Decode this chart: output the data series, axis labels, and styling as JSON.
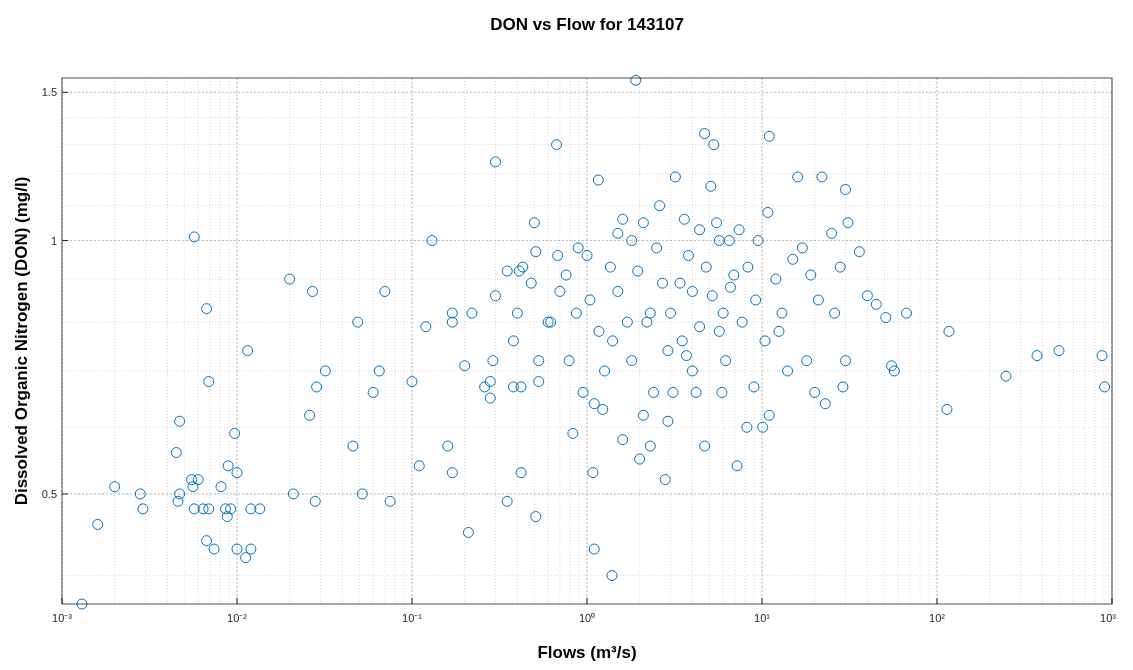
{
  "chart_data": {
    "type": "scatter",
    "title": "DON vs Flow for 143107",
    "xlabel": "Flows (m³/s)",
    "ylabel": "Dissolved Organic Nitrogen (DON) (mg/l)",
    "log": "xy",
    "grid": true,
    "marker": "circle",
    "xlim": [
      0.001,
      1000
    ],
    "xticks": [
      {
        "value": 0.001,
        "label": "10⁻³"
      },
      {
        "value": 0.01,
        "label": "10⁻²"
      },
      {
        "value": 0.1,
        "label": "10⁻¹"
      },
      {
        "value": 1,
        "label": "10⁰"
      },
      {
        "value": 10,
        "label": "10¹"
      },
      {
        "value": 100,
        "label": "10²"
      },
      {
        "value": 1000,
        "label": "10³"
      }
    ],
    "ylim": [
      0.37,
      1.56
    ],
    "yticks": [
      0.5,
      1,
      1.5
    ],
    "series": [
      {
        "color": "#0072bd",
        "x": [
          0.0013,
          0.0016,
          0.002,
          0.0028,
          0.0029,
          0.0045,
          0.0047,
          0.0046,
          0.0047,
          0.0055,
          0.0056,
          0.0057,
          0.0057,
          0.006,
          0.0064,
          0.0067,
          0.0067,
          0.0069,
          0.0069,
          0.0074,
          0.0081,
          0.0086,
          0.0088,
          0.0089,
          0.0092,
          0.0097,
          0.01,
          0.01,
          0.0112,
          0.0115,
          0.012,
          0.012,
          0.0135,
          0.02,
          0.021,
          0.026,
          0.027,
          0.028,
          0.0285,
          0.032,
          0.046,
          0.049,
          0.052,
          0.06,
          0.065,
          0.07,
          0.075,
          0.1,
          0.11,
          0.12,
          0.13,
          0.16,
          0.17,
          0.17,
          0.17,
          0.2,
          0.21,
          0.22,
          0.26,
          0.28,
          0.28,
          0.29,
          0.3,
          0.3,
          0.35,
          0.35,
          0.38,
          0.38,
          0.4,
          0.41,
          0.42,
          0.42,
          0.43,
          0.48,
          0.5,
          0.51,
          0.51,
          0.53,
          0.53,
          0.6,
          0.62,
          0.67,
          0.68,
          0.7,
          0.76,
          0.79,
          0.83,
          0.87,
          0.89,
          0.95,
          1.0,
          1.04,
          1.1,
          1.1,
          1.08,
          1.16,
          1.17,
          1.23,
          1.26,
          1.36,
          1.39,
          1.4,
          1.5,
          1.5,
          1.6,
          1.6,
          1.7,
          1.8,
          1.8,
          1.9,
          1.95,
          2.0,
          2.1,
          2.1,
          2.2,
          2.3,
          2.3,
          2.4,
          2.5,
          2.6,
          2.7,
          2.8,
          2.9,
          2.9,
          3.0,
          3.1,
          3.2,
          3.4,
          3.5,
          3.6,
          3.7,
          3.8,
          4.0,
          4.0,
          4.2,
          4.4,
          4.4,
          4.7,
          4.7,
          4.8,
          5.1,
          5.2,
          5.3,
          5.5,
          5.7,
          5.7,
          5.9,
          6.0,
          6.2,
          6.5,
          6.6,
          6.9,
          7.2,
          7.4,
          7.7,
          8.2,
          8.3,
          9.0,
          9.2,
          9.5,
          10.1,
          10.4,
          10.8,
          11,
          11,
          12,
          12.5,
          13,
          14,
          15,
          16,
          17,
          18,
          19,
          20,
          21,
          22,
          23,
          25,
          26,
          28,
          29,
          30,
          30,
          31,
          36,
          40,
          45,
          51,
          55,
          57,
          67,
          114,
          117,
          248,
          373,
          498,
          877,
          907
        ],
        "values": [
          0.37,
          0.46,
          0.51,
          0.5,
          0.48,
          0.56,
          0.61,
          0.49,
          0.5,
          0.52,
          0.51,
          1.01,
          0.48,
          0.52,
          0.48,
          0.83,
          0.44,
          0.68,
          0.48,
          0.43,
          0.51,
          0.48,
          0.47,
          0.54,
          0.48,
          0.59,
          0.53,
          0.43,
          0.42,
          0.74,
          0.43,
          0.48,
          0.48,
          0.9,
          0.5,
          0.62,
          0.87,
          0.49,
          0.67,
          0.7,
          0.57,
          0.8,
          0.5,
          0.66,
          0.7,
          0.87,
          0.49,
          0.68,
          0.54,
          0.79,
          1.0,
          0.57,
          0.8,
          0.82,
          0.53,
          0.71,
          0.45,
          0.82,
          0.67,
          0.65,
          0.68,
          0.72,
          1.24,
          0.86,
          0.49,
          0.92,
          0.76,
          0.67,
          0.82,
          0.92,
          0.67,
          0.53,
          0.93,
          0.89,
          1.05,
          0.97,
          0.47,
          0.72,
          0.68,
          0.8,
          0.8,
          1.3,
          0.96,
          0.87,
          0.91,
          0.72,
          0.59,
          0.82,
          0.98,
          0.66,
          0.96,
          0.85,
          0.64,
          0.43,
          0.53,
          1.18,
          0.78,
          0.63,
          0.7,
          0.93,
          0.4,
          0.76,
          0.87,
          1.02,
          0.58,
          1.06,
          0.8,
          1.0,
          0.72,
          1.55,
          0.92,
          0.55,
          0.62,
          1.05,
          0.8,
          0.57,
          0.82,
          0.66,
          0.98,
          1.1,
          0.89,
          0.52,
          0.61,
          0.74,
          0.82,
          0.66,
          1.19,
          0.89,
          0.76,
          1.06,
          0.73,
          0.96,
          0.87,
          0.7,
          0.66,
          1.03,
          0.79,
          1.34,
          0.57,
          0.93,
          1.16,
          0.86,
          1.3,
          1.05,
          1.0,
          0.78,
          0.66,
          0.82,
          0.72,
          1.0,
          0.88,
          0.91,
          0.54,
          1.03,
          0.8,
          0.6,
          0.93,
          0.67,
          0.85,
          1.0,
          0.6,
          0.76,
          1.08,
          1.33,
          0.62,
          0.9,
          0.78,
          0.82,
          0.7,
          0.95,
          1.19,
          0.98,
          0.72,
          0.91,
          0.66,
          0.85,
          1.19,
          0.64,
          1.02,
          0.82,
          0.93,
          0.67,
          0.72,
          1.15,
          1.05,
          0.97,
          0.86,
          0.84,
          0.81,
          0.71,
          0.7,
          0.82,
          0.63,
          0.78,
          0.69,
          0.73,
          0.74,
          0.73,
          0.67
        ]
      }
    ]
  }
}
